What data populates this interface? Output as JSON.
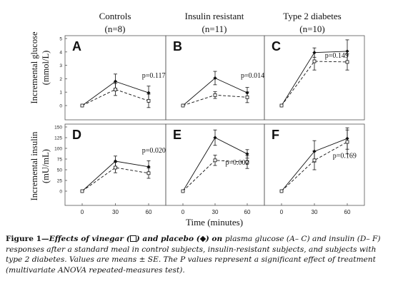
{
  "figure": {
    "column_titles": [
      {
        "name": "Controls",
        "n": "(n=8)"
      },
      {
        "name": "Insulin resistant",
        "n": "(n=11)"
      },
      {
        "name": "Type 2 diabetes",
        "n": "(n=10)"
      }
    ],
    "row_labels": [
      {
        "line1": "Incremental glucose",
        "line2": "(mmol/L)"
      },
      {
        "line1": "Incremental insulin",
        "line2": "(mU/mL)"
      }
    ],
    "x_label": "Time (minutes)",
    "caption": {
      "label": "Figure 1",
      "sep": "—",
      "part1": "Effects of vinegar (",
      "part2": ") and placebo (",
      "part3": ") on ",
      "part4": "plasma glucose (A– C) and insulin (D– F)",
      "part5": " responses after a standard meal in control subjects, insulin-resistant subjects, and subjects with type 2 diabetes. Values are means ",
      "part6": "± SE",
      "part7": ". The P values represent a significant effect of treatment (multivariate ANOVA repeated-measures test)."
    }
  },
  "chart_data": [
    {
      "type": "line",
      "panel": "A",
      "group": "Controls",
      "measure": "glucose",
      "x": [
        0,
        30,
        60
      ],
      "xticks": [
        0,
        30,
        60
      ],
      "ylim": [
        0,
        5
      ],
      "yticks": [
        0,
        1,
        2,
        3,
        4,
        5
      ],
      "series": [
        {
          "marker": "diamond",
          "values": [
            0,
            1.8,
            0.95
          ],
          "err": [
            0,
            0.55,
            0.5
          ]
        },
        {
          "marker": "square",
          "values": [
            0,
            1.2,
            0.35
          ],
          "err": [
            0,
            0.45,
            0.5
          ]
        }
      ],
      "pvalue": "p=0.117",
      "pvalue_pos": [
        3.0,
        0.8
      ]
    },
    {
      "type": "line",
      "panel": "B",
      "group": "Insulin resistant",
      "measure": "glucose",
      "x": [
        0,
        30,
        60
      ],
      "xticks": [
        0,
        30,
        60
      ],
      "ylim": [
        0,
        5
      ],
      "yticks": [
        0,
        1,
        2,
        3,
        4,
        5
      ],
      "series": [
        {
          "marker": "diamond",
          "values": [
            0,
            2.05,
            0.95
          ],
          "err": [
            0,
            0.5,
            0.4
          ]
        },
        {
          "marker": "square",
          "values": [
            0,
            0.78,
            0.62
          ],
          "err": [
            0,
            0.25,
            0.4
          ]
        }
      ],
      "pvalue": "p=0.014",
      "pvalue_pos": [
        3.0,
        0.8
      ]
    },
    {
      "type": "line",
      "panel": "C",
      "group": "Type 2 diabetes",
      "measure": "glucose",
      "x": [
        0,
        30,
        60
      ],
      "xticks": [
        0,
        30,
        60
      ],
      "ylim": [
        0,
        5
      ],
      "yticks": [
        0,
        1,
        2,
        3,
        4,
        5
      ],
      "series": [
        {
          "marker": "diamond",
          "values": [
            0,
            3.95,
            4.05
          ],
          "err": [
            0,
            0.35,
            0.85
          ]
        },
        {
          "marker": "square",
          "values": [
            0,
            3.3,
            3.25
          ],
          "err": [
            0,
            0.65,
            0.6
          ]
        }
      ],
      "pvalue": "p=0.149",
      "pvalue_pos": [
        2.2,
        0.3
      ]
    },
    {
      "type": "line",
      "panel": "D",
      "group": "Controls",
      "measure": "insulin",
      "x": [
        0,
        30,
        60
      ],
      "xticks": [
        0,
        30,
        60
      ],
      "ylim": [
        0,
        150
      ],
      "yticks": [
        0,
        25,
        50,
        75,
        100,
        125,
        150
      ],
      "series": [
        {
          "marker": "diamond",
          "values": [
            0,
            70,
            57
          ],
          "err": [
            0,
            12,
            14
          ]
        },
        {
          "marker": "square",
          "values": [
            0,
            55,
            42
          ],
          "err": [
            0,
            12,
            12
          ]
        }
      ],
      "pvalue": "p=0.020",
      "pvalue_pos": [
        3.0,
        0.48
      ]
    },
    {
      "type": "line",
      "panel": "E",
      "group": "Insulin resistant",
      "measure": "insulin",
      "x": [
        0,
        30,
        60
      ],
      "xticks": [
        0,
        30,
        60
      ],
      "ylim": [
        0,
        150
      ],
      "yticks": [
        0,
        25,
        50,
        75,
        100,
        125,
        150
      ],
      "series": [
        {
          "marker": "diamond",
          "values": [
            0,
            125,
            87
          ],
          "err": [
            0,
            18,
            10
          ]
        },
        {
          "marker": "square",
          "values": [
            0,
            72,
            68
          ],
          "err": [
            0,
            12,
            15
          ]
        }
      ],
      "pvalue": "p=0.002",
      "pvalue_pos": [
        2.2,
        0.8
      ]
    },
    {
      "type": "line",
      "panel": "F",
      "group": "Type 2 diabetes",
      "measure": "insulin",
      "x": [
        0,
        30,
        60
      ],
      "xticks": [
        0,
        30,
        60
      ],
      "ylim": [
        0,
        150
      ],
      "yticks": [
        0,
        25,
        50,
        75,
        100,
        125,
        150
      ],
      "series": [
        {
          "marker": "diamond",
          "values": [
            0,
            93,
            123
          ],
          "err": [
            0,
            25,
            25
          ]
        },
        {
          "marker": "square",
          "values": [
            0,
            72,
            115
          ],
          "err": [
            0,
            22,
            28
          ]
        }
      ],
      "pvalue": "p=0.169",
      "pvalue_pos": [
        2.6,
        0.62
      ]
    }
  ]
}
